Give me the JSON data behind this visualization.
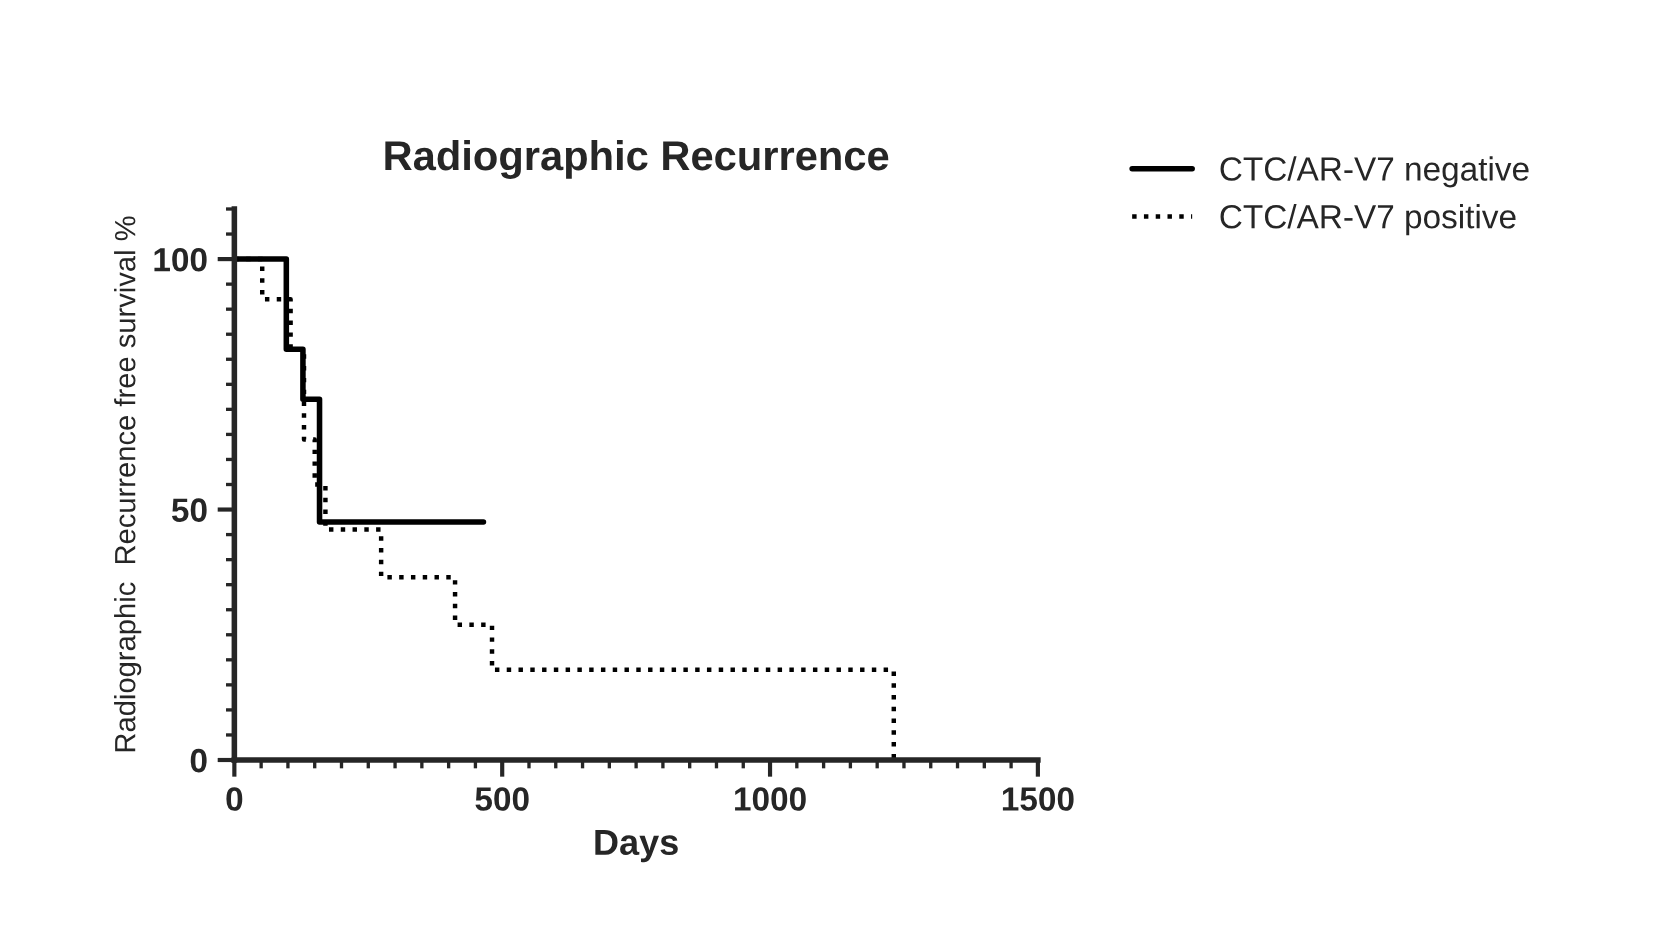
{
  "chart_data": {
    "type": "step",
    "title": "Radiographic Recurrence",
    "xlabel": "Days",
    "ylabel": "Radiographic  Recurrence free survival %",
    "series": [
      {
        "name": "CTC/AR-V7 negative",
        "color": "#000000",
        "line_style": "solid",
        "x": [
          0,
          97,
          128,
          159,
          465
        ],
        "values": [
          100,
          82,
          72,
          47.5,
          47.5
        ]
      },
      {
        "name": "CTC/AR-V7 positive",
        "color": "#000000",
        "line_style": "dotted",
        "x": [
          0,
          52,
          105,
          130,
          150,
          170,
          274,
          412,
          481,
          1231
        ],
        "values": [
          100,
          92,
          82,
          64,
          55,
          46,
          36.5,
          27,
          18,
          0
        ]
      }
    ],
    "xlim": [
      0,
      1500
    ],
    "xticks": [
      0,
      500,
      1000,
      1500
    ],
    "ylim": [
      0,
      110
    ],
    "yticks": [
      0,
      50,
      100
    ],
    "grid": false,
    "legend": "top right",
    "marker": "none"
  }
}
